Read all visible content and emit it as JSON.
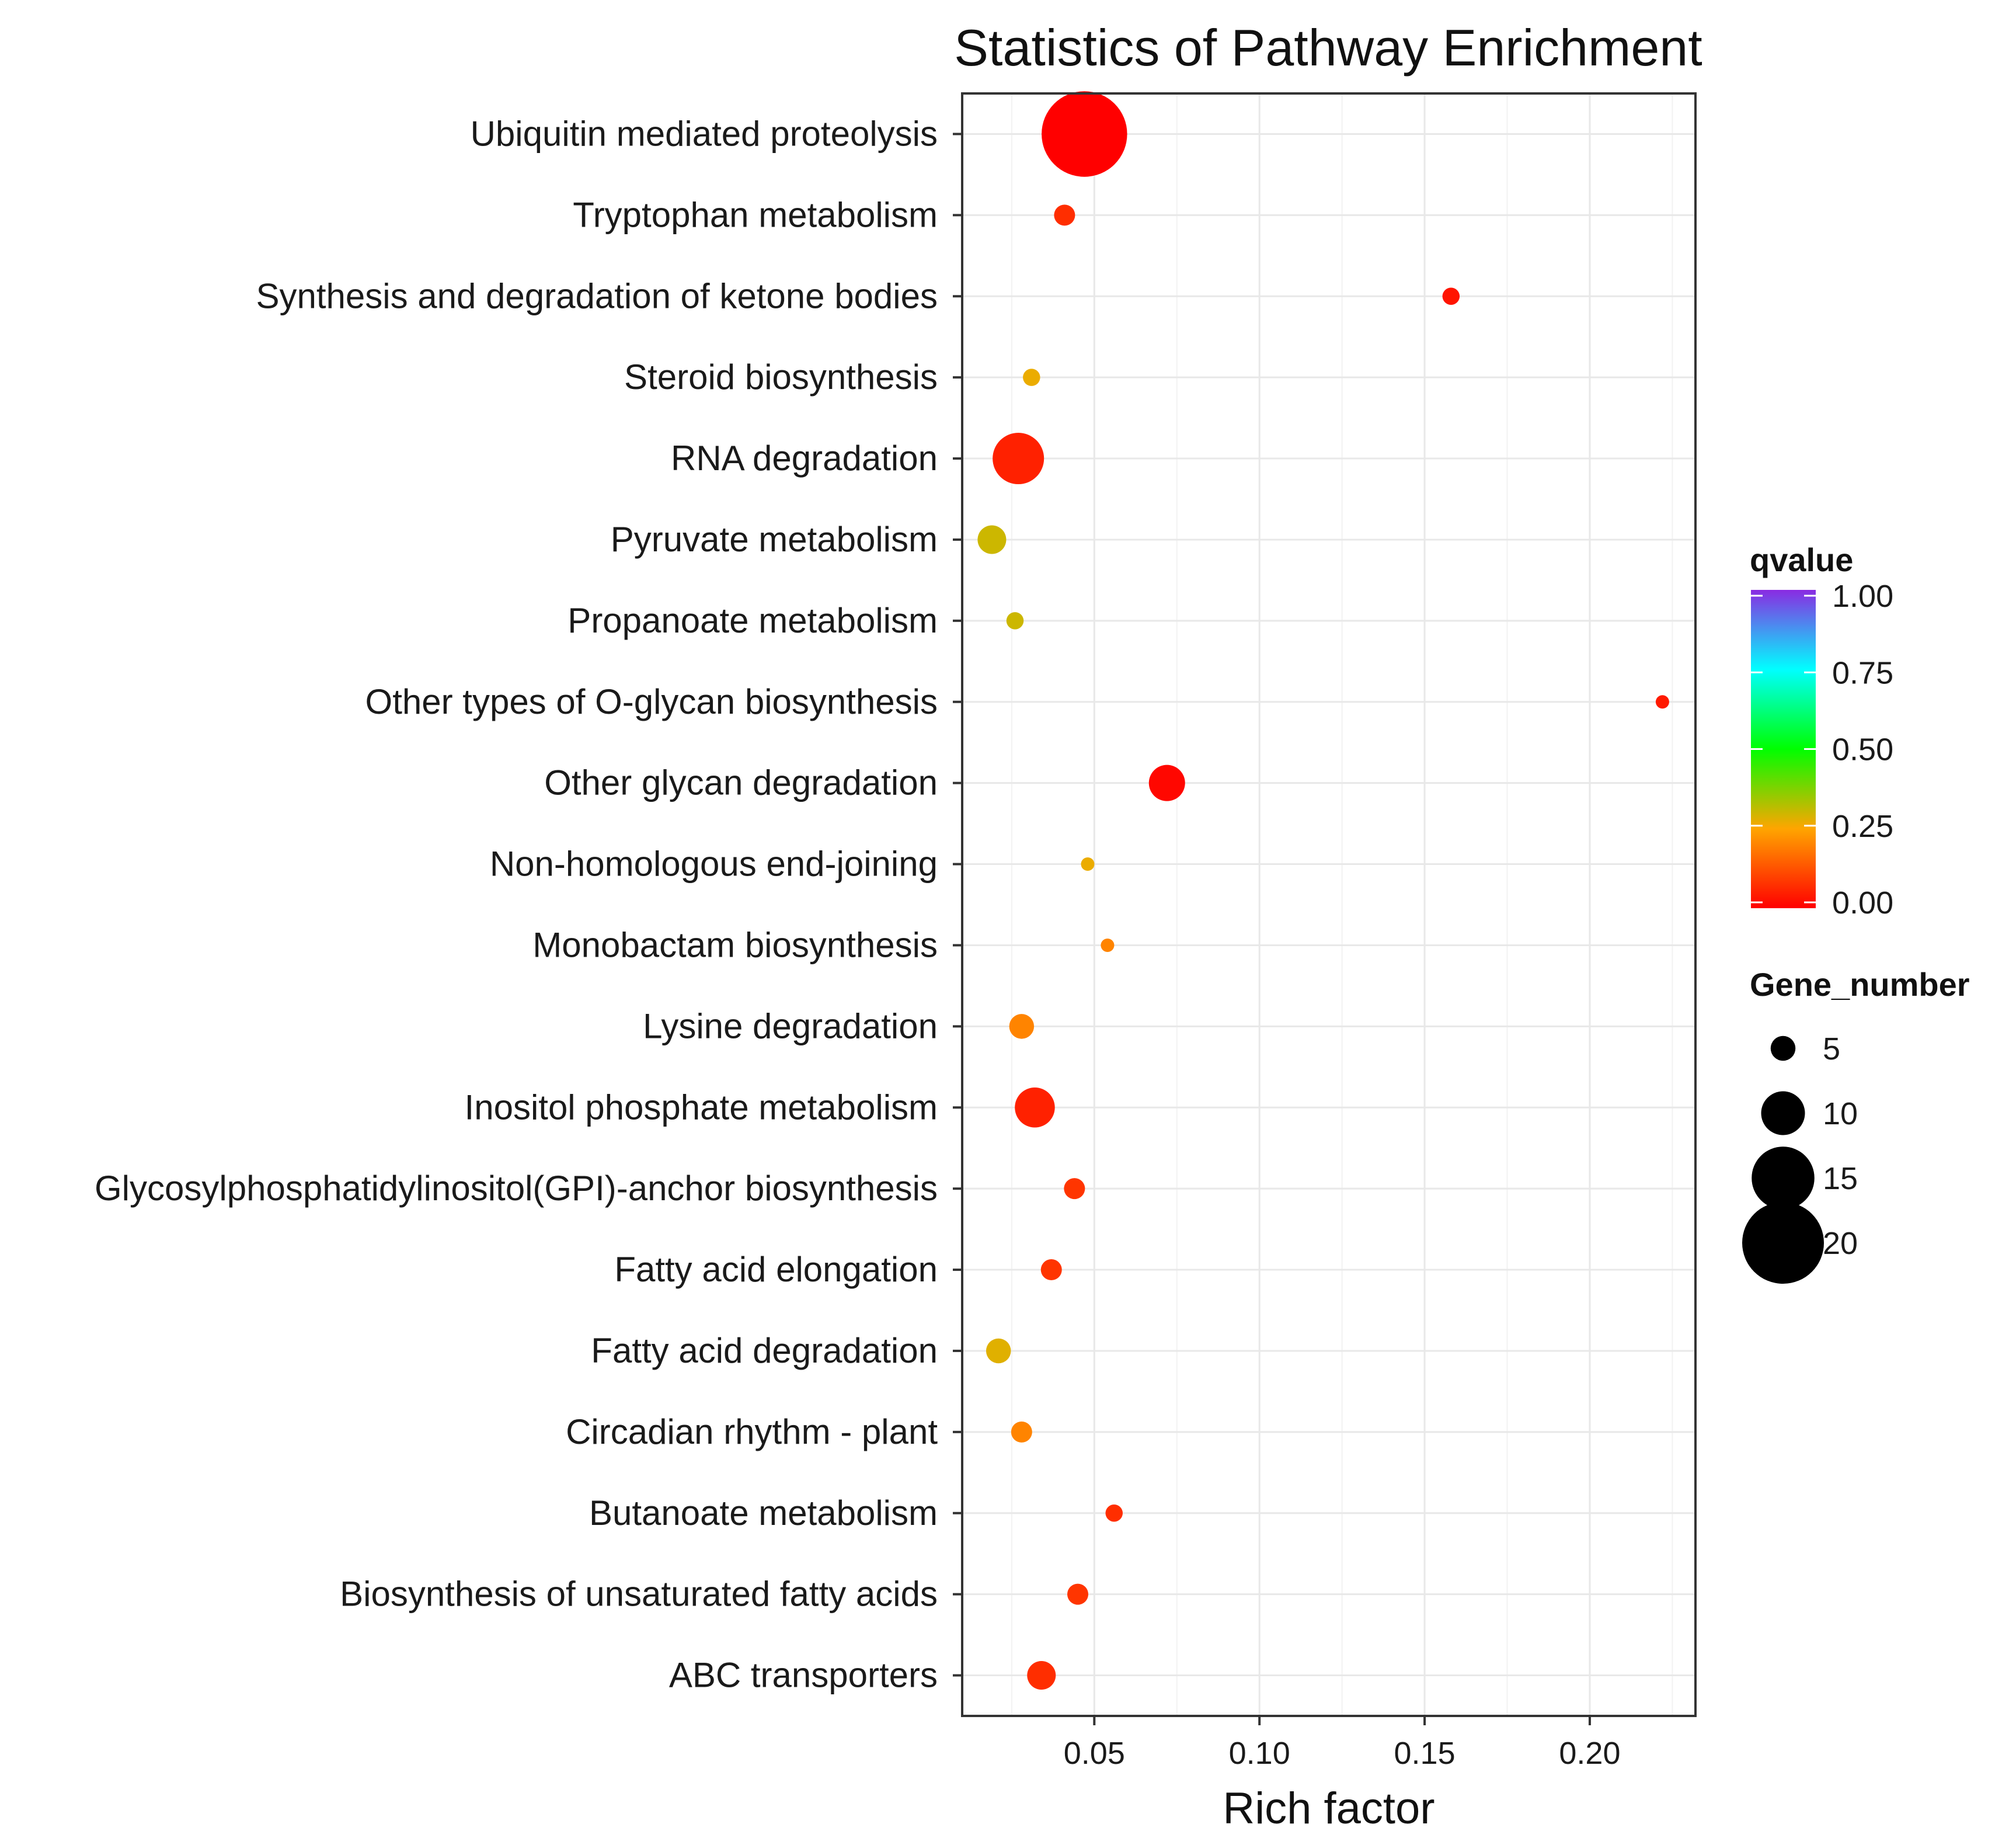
{
  "chart_data": {
    "type": "scatter",
    "title": "Statistics of Pathway Enrichment",
    "xlabel": "Rich factor",
    "ylabel": "",
    "xlim": [
      0.01,
      0.232
    ],
    "xticks": [
      0.05,
      0.1,
      0.15,
      0.2
    ],
    "xtick_labels": [
      "0.05",
      "0.10",
      "0.15",
      "0.20"
    ],
    "grid": true,
    "points": [
      {
        "pathway": "Ubiquitin mediated proteolysis",
        "rich_factor": 0.047,
        "qvalue": 0.0,
        "gene_number": 21
      },
      {
        "pathway": "Tryptophan metabolism",
        "rich_factor": 0.041,
        "qvalue": 0.07,
        "gene_number": 4
      },
      {
        "pathway": "Synthesis and degradation of ketone bodies",
        "rich_factor": 0.158,
        "qvalue": 0.03,
        "gene_number": 3
      },
      {
        "pathway": "Steroid biosynthesis",
        "rich_factor": 0.031,
        "qvalue": 0.27,
        "gene_number": 3
      },
      {
        "pathway": "RNA degradation",
        "rich_factor": 0.027,
        "qvalue": 0.05,
        "gene_number": 12
      },
      {
        "pathway": "Pyruvate metabolism",
        "rich_factor": 0.019,
        "qvalue": 0.3,
        "gene_number": 6
      },
      {
        "pathway": "Propanoate metabolism",
        "rich_factor": 0.026,
        "qvalue": 0.3,
        "gene_number": 3
      },
      {
        "pathway": "Other types of O-glycan biosynthesis",
        "rich_factor": 0.222,
        "qvalue": 0.04,
        "gene_number": 2
      },
      {
        "pathway": "Other glycan degradation",
        "rich_factor": 0.072,
        "qvalue": 0.01,
        "gene_number": 8
      },
      {
        "pathway": "Non-homologous end-joining",
        "rich_factor": 0.048,
        "qvalue": 0.27,
        "gene_number": 2
      },
      {
        "pathway": "Monobactam biosynthesis",
        "rich_factor": 0.054,
        "qvalue": 0.2,
        "gene_number": 2
      },
      {
        "pathway": "Lysine degradation",
        "rich_factor": 0.028,
        "qvalue": 0.2,
        "gene_number": 5
      },
      {
        "pathway": "Inositol phosphate metabolism",
        "rich_factor": 0.032,
        "qvalue": 0.05,
        "gene_number": 9
      },
      {
        "pathway": "Glycosylphosphatidylinositol(GPI)-anchor biosynthesis",
        "rich_factor": 0.044,
        "qvalue": 0.08,
        "gene_number": 4
      },
      {
        "pathway": "Fatty acid elongation",
        "rich_factor": 0.037,
        "qvalue": 0.08,
        "gene_number": 4
      },
      {
        "pathway": "Fatty acid degradation",
        "rich_factor": 0.021,
        "qvalue": 0.28,
        "gene_number": 5
      },
      {
        "pathway": "Circadian rhythm - plant",
        "rich_factor": 0.028,
        "qvalue": 0.2,
        "gene_number": 4
      },
      {
        "pathway": "Butanoate metabolism",
        "rich_factor": 0.056,
        "qvalue": 0.07,
        "gene_number": 3
      },
      {
        "pathway": "Biosynthesis of unsaturated fatty acids",
        "rich_factor": 0.045,
        "qvalue": 0.08,
        "gene_number": 4
      },
      {
        "pathway": "ABC transporters",
        "rich_factor": 0.034,
        "qvalue": 0.07,
        "gene_number": 6
      }
    ],
    "color_legend": {
      "title": "qvalue",
      "ticks": [
        1.0,
        0.75,
        0.5,
        0.25,
        0.0
      ],
      "tick_labels": [
        "1.00",
        "0.75",
        "0.50",
        "0.25",
        "0.00"
      ]
    },
    "size_legend": {
      "title": "Gene_number",
      "values": [
        5,
        10,
        15,
        20
      ],
      "labels": [
        "5",
        "10",
        "15",
        "20"
      ]
    }
  }
}
